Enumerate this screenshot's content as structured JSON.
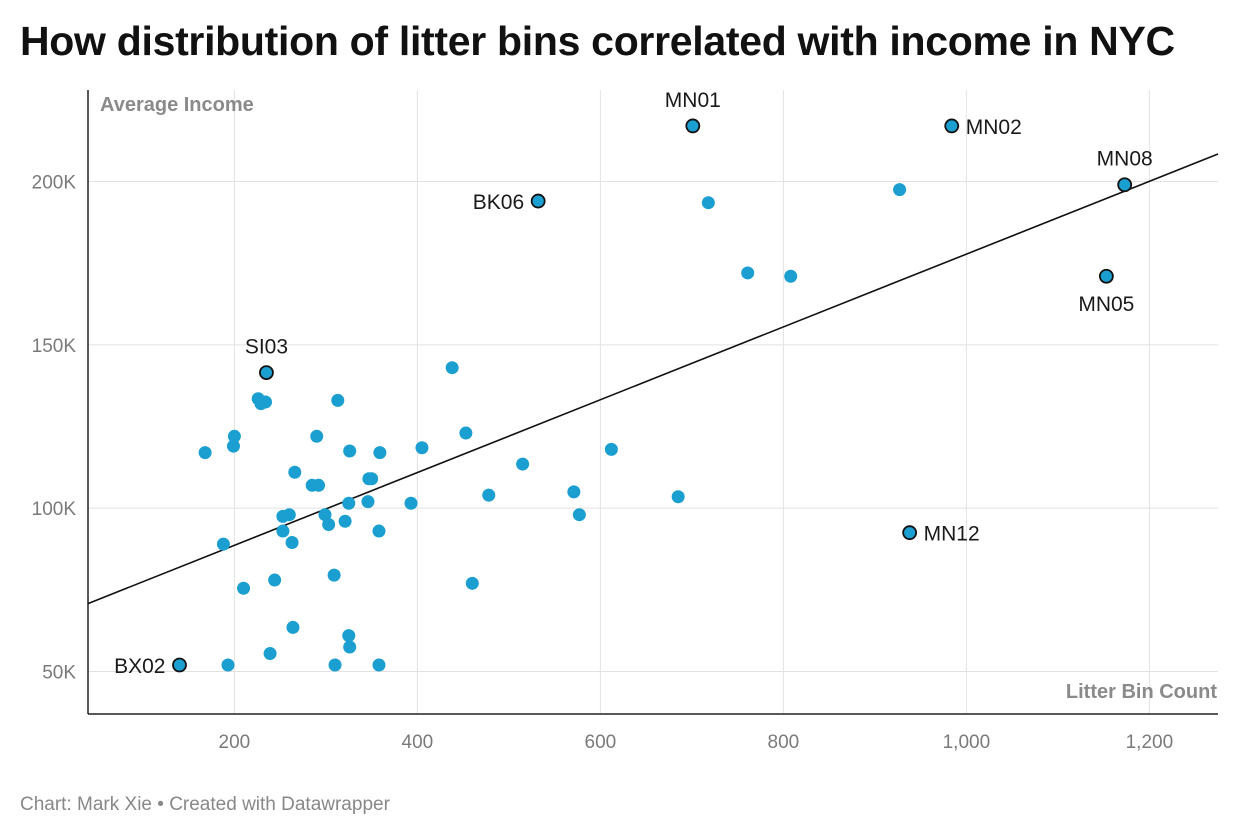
{
  "title": "How distribution of litter bins correlated with income in NYC",
  "footer": "Chart: Mark Xie • Created with Datawrapper",
  "colors": {
    "point": "#1a9fd0",
    "highlight_stroke": "#111111",
    "trend": "#111111",
    "grid": "#e2e2e2",
    "axis": "#222222"
  },
  "chart_data": {
    "type": "scatter",
    "title": "How distribution of litter bins correlated with income in NYC",
    "xlabel": "Litter Bin Count",
    "ylabel": "Average Income",
    "xlim": [
      40,
      1275
    ],
    "ylim": [
      37000,
      228000
    ],
    "xticks": [
      200,
      400,
      600,
      800,
      1000,
      1200
    ],
    "xtick_labels": [
      "200",
      "400",
      "600",
      "800",
      "1,000",
      "1,200"
    ],
    "yticks": [
      50000,
      100000,
      150000,
      200000
    ],
    "ytick_labels": [
      "50K",
      "100K",
      "150K",
      "200K"
    ],
    "grid": true,
    "trendline": {
      "x": [
        40,
        1275
      ],
      "y": [
        70800,
        208400
      ]
    },
    "labeled_points": [
      {
        "name": "MN01",
        "x": 701,
        "y": 217000,
        "pos": "above"
      },
      {
        "name": "MN02",
        "x": 984,
        "y": 217000,
        "pos": "right"
      },
      {
        "name": "MN08",
        "x": 1173,
        "y": 199000,
        "pos": "above"
      },
      {
        "name": "BK06",
        "x": 532,
        "y": 194000,
        "pos": "left"
      },
      {
        "name": "MN05",
        "x": 1153,
        "y": 171000,
        "pos": "below"
      },
      {
        "name": "SI03",
        "x": 235,
        "y": 141500,
        "pos": "above"
      },
      {
        "name": "MN12",
        "x": 938,
        "y": 92500,
        "pos": "right"
      },
      {
        "name": "BX02",
        "x": 140,
        "y": 52000,
        "pos": "left"
      }
    ],
    "points": [
      [
        718,
        193500
      ],
      [
        927,
        197500
      ],
      [
        761,
        172000
      ],
      [
        808,
        171000
      ],
      [
        438,
        143000
      ],
      [
        226,
        133500
      ],
      [
        229,
        132000
      ],
      [
        234,
        132500
      ],
      [
        313,
        133000
      ],
      [
        200,
        122000
      ],
      [
        290,
        122000
      ],
      [
        453,
        123000
      ],
      [
        168,
        117000
      ],
      [
        199,
        119000
      ],
      [
        326,
        117500
      ],
      [
        359,
        117000
      ],
      [
        405,
        118500
      ],
      [
        612,
        118000
      ],
      [
        515,
        113500
      ],
      [
        266,
        111000
      ],
      [
        285,
        107000
      ],
      [
        292,
        107000
      ],
      [
        347,
        109000
      ],
      [
        350,
        109000
      ],
      [
        571,
        105000
      ],
      [
        478,
        104000
      ],
      [
        685,
        103500
      ],
      [
        325,
        101500
      ],
      [
        346,
        102000
      ],
      [
        393,
        101500
      ],
      [
        253,
        97500
      ],
      [
        260,
        98000
      ],
      [
        299,
        98000
      ],
      [
        321,
        96000
      ],
      [
        303,
        95000
      ],
      [
        253,
        93000
      ],
      [
        358,
        93000
      ],
      [
        577,
        98000
      ],
      [
        263,
        89500
      ],
      [
        188,
        89000
      ],
      [
        309,
        79500
      ],
      [
        244,
        78000
      ],
      [
        210,
        75500
      ],
      [
        460,
        77000
      ],
      [
        264,
        63500
      ],
      [
        325,
        61000
      ],
      [
        326,
        57500
      ],
      [
        239,
        55500
      ],
      [
        193,
        52000
      ],
      [
        310,
        52000
      ],
      [
        358,
        52000
      ]
    ]
  }
}
